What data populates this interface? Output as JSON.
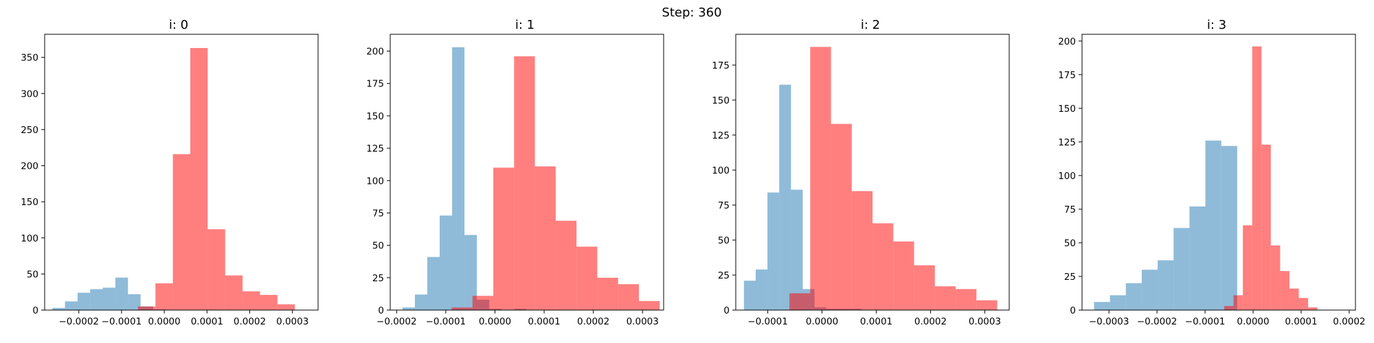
{
  "suptitle": "Step: 360",
  "colors": {
    "blue": "#1f77b4",
    "red": "#ff0000"
  },
  "chart_data": [
    {
      "type": "histogram",
      "title": "i: 0",
      "xlim": [
        -0.00028,
        0.00036
      ],
      "ylim": [
        0,
        382
      ],
      "xticks": [
        -0.0002,
        -0.0001,
        0.0,
        0.0001,
        0.0002,
        0.0003
      ],
      "xtick_labels": [
        "−0.0002",
        "−0.0001",
        "0.0000",
        "0.0001",
        "0.0002",
        "0.0003"
      ],
      "yticks": [
        0,
        50,
        100,
        150,
        200,
        250,
        300,
        350
      ],
      "ytick_labels": [
        "0",
        "50",
        "100",
        "150",
        "200",
        "250",
        "300",
        "350"
      ],
      "series": [
        {
          "color": "blue",
          "opacity": 0.5,
          "bin_start": -0.000262,
          "bin_width": 2.95e-05,
          "counts": [
            3,
            12,
            24,
            29,
            31,
            45,
            22,
            5,
            1,
            0
          ]
        },
        {
          "color": "red",
          "opacity": 0.5,
          "bin_start": -6.15e-05,
          "bin_width": 4.08e-05,
          "counts": [
            5,
            37,
            216,
            363,
            112,
            48,
            26,
            21,
            8
          ]
        }
      ]
    },
    {
      "type": "histogram",
      "title": "i: 1",
      "xlim": [
        -0.000213,
        0.000343
      ],
      "ylim": [
        0,
        213
      ],
      "xticks": [
        -0.0002,
        -0.0001,
        0.0,
        0.0001,
        0.0002,
        0.0003
      ],
      "xtick_labels": [
        "−0.0002",
        "−0.0001",
        "0.0000",
        "0.0001",
        "0.0002",
        "0.0003"
      ],
      "yticks": [
        0,
        25,
        50,
        75,
        100,
        125,
        150,
        175,
        200
      ],
      "ytick_labels": [
        "0",
        "25",
        "50",
        "75",
        "100",
        "125",
        "150",
        "175",
        "200"
      ],
      "series": [
        {
          "color": "blue",
          "opacity": 0.5,
          "bin_start": -0.000188,
          "bin_width": 2.52e-05,
          "counts": [
            2,
            12,
            41,
            73,
            203,
            58,
            8,
            1,
            0,
            1
          ]
        },
        {
          "color": "red",
          "opacity": 0.5,
          "bin_start": -8.8e-05,
          "bin_width": 4.23e-05,
          "counts": [
            2,
            11,
            110,
            196,
            111,
            69,
            49,
            25,
            20,
            7
          ]
        }
      ]
    },
    {
      "type": "histogram",
      "title": "i: 2",
      "xlim": [
        -0.000159,
        0.000345
      ],
      "ylim": [
        0,
        197
      ],
      "xticks": [
        -0.0001,
        0.0,
        0.0001,
        0.0002,
        0.0003
      ],
      "xtick_labels": [
        "−0.0001",
        "0.0000",
        "0.0001",
        "0.0002",
        "0.0003"
      ],
      "yticks": [
        0,
        25,
        50,
        75,
        100,
        125,
        150,
        175
      ],
      "ytick_labels": [
        "0",
        "25",
        "50",
        "75",
        "100",
        "125",
        "150",
        "175"
      ],
      "series": [
        {
          "color": "blue",
          "opacity": 0.5,
          "bin_start": -0.000144,
          "bin_width": 2.17e-05,
          "counts": [
            21,
            29,
            84,
            161,
            86,
            15,
            2,
            1,
            1,
            1
          ]
        },
        {
          "color": "red",
          "opacity": 0.5,
          "bin_start": -6.01e-05,
          "bin_width": 3.83e-05,
          "counts": [
            12,
            188,
            133,
            85,
            62,
            49,
            32,
            17,
            15,
            7
          ]
        }
      ]
    },
    {
      "type": "histogram",
      "title": "i: 3",
      "xlim": [
        -0.000356,
        0.000213
      ],
      "ylim": [
        0,
        205
      ],
      "xticks": [
        -0.0003,
        -0.0002,
        -0.0001,
        0.0,
        0.0001,
        0.0002
      ],
      "xtick_labels": [
        "−0.0003",
        "−0.0002",
        "−0.0001",
        "0.0000",
        "0.0001",
        "0.0002"
      ],
      "yticks": [
        0,
        25,
        50,
        75,
        100,
        125,
        150,
        175,
        200
      ],
      "ytick_labels": [
        "0",
        "25",
        "50",
        "75",
        "100",
        "125",
        "150",
        "175",
        "200"
      ],
      "series": [
        {
          "color": "blue",
          "opacity": 0.5,
          "bin_start": -0.000331,
          "bin_width": 3.31e-05,
          "counts": [
            6,
            11,
            20,
            30,
            37,
            61,
            77,
            126,
            122,
            0
          ]
        },
        {
          "color": "red",
          "opacity": 0.5,
          "bin_start": -6.01e-05,
          "bin_width": 1.94e-05,
          "counts": [
            3,
            11,
            63,
            196,
            123,
            48,
            29,
            16,
            9,
            2
          ]
        }
      ]
    }
  ]
}
